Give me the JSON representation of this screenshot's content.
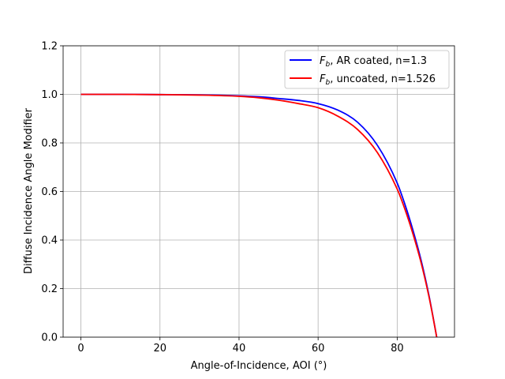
{
  "chart_data": {
    "type": "line",
    "xlabel": "Angle-of-Incidence, AOI (°)",
    "ylabel": "Diffuse Incidence Angle Modifier",
    "xlim": [
      -4.5,
      94.5
    ],
    "ylim": [
      0.0,
      1.2
    ],
    "xticks": [
      0,
      20,
      40,
      60,
      80
    ],
    "yticks": [
      0.0,
      0.2,
      0.4,
      0.6,
      0.8,
      1.0,
      1.2
    ],
    "xtick_labels": [
      "0",
      "20",
      "40",
      "60",
      "80"
    ],
    "ytick_labels": [
      "0.0",
      "0.2",
      "0.4",
      "0.6",
      "0.8",
      "1.0",
      "1.2"
    ],
    "grid": true,
    "legend_position": "top-right",
    "x": [
      0,
      10,
      20,
      30,
      40,
      45,
      50,
      55,
      60,
      65,
      70,
      75,
      80,
      82,
      84,
      86,
      88,
      89,
      90
    ],
    "series": [
      {
        "name": "F_b, AR coated, n=1.3",
        "legend_main": "F",
        "legend_sub": "b",
        "legend_rest": ", AR coated, n=1.3",
        "color": "#0000ff",
        "values": [
          1.0,
          1.0,
          0.999,
          0.998,
          0.994,
          0.99,
          0.983,
          0.975,
          0.962,
          0.935,
          0.885,
          0.79,
          0.635,
          0.545,
          0.44,
          0.32,
          0.175,
          0.09,
          0.0
        ]
      },
      {
        "name": "F_b, uncoated, n=1.526",
        "legend_main": "F",
        "legend_sub": "b",
        "legend_rest": ", uncoated, n=1.526",
        "color": "#ff0000",
        "values": [
          1.0,
          1.0,
          0.999,
          0.997,
          0.992,
          0.986,
          0.976,
          0.962,
          0.945,
          0.91,
          0.855,
          0.76,
          0.61,
          0.525,
          0.425,
          0.31,
          0.17,
          0.088,
          0.0
        ]
      }
    ]
  }
}
